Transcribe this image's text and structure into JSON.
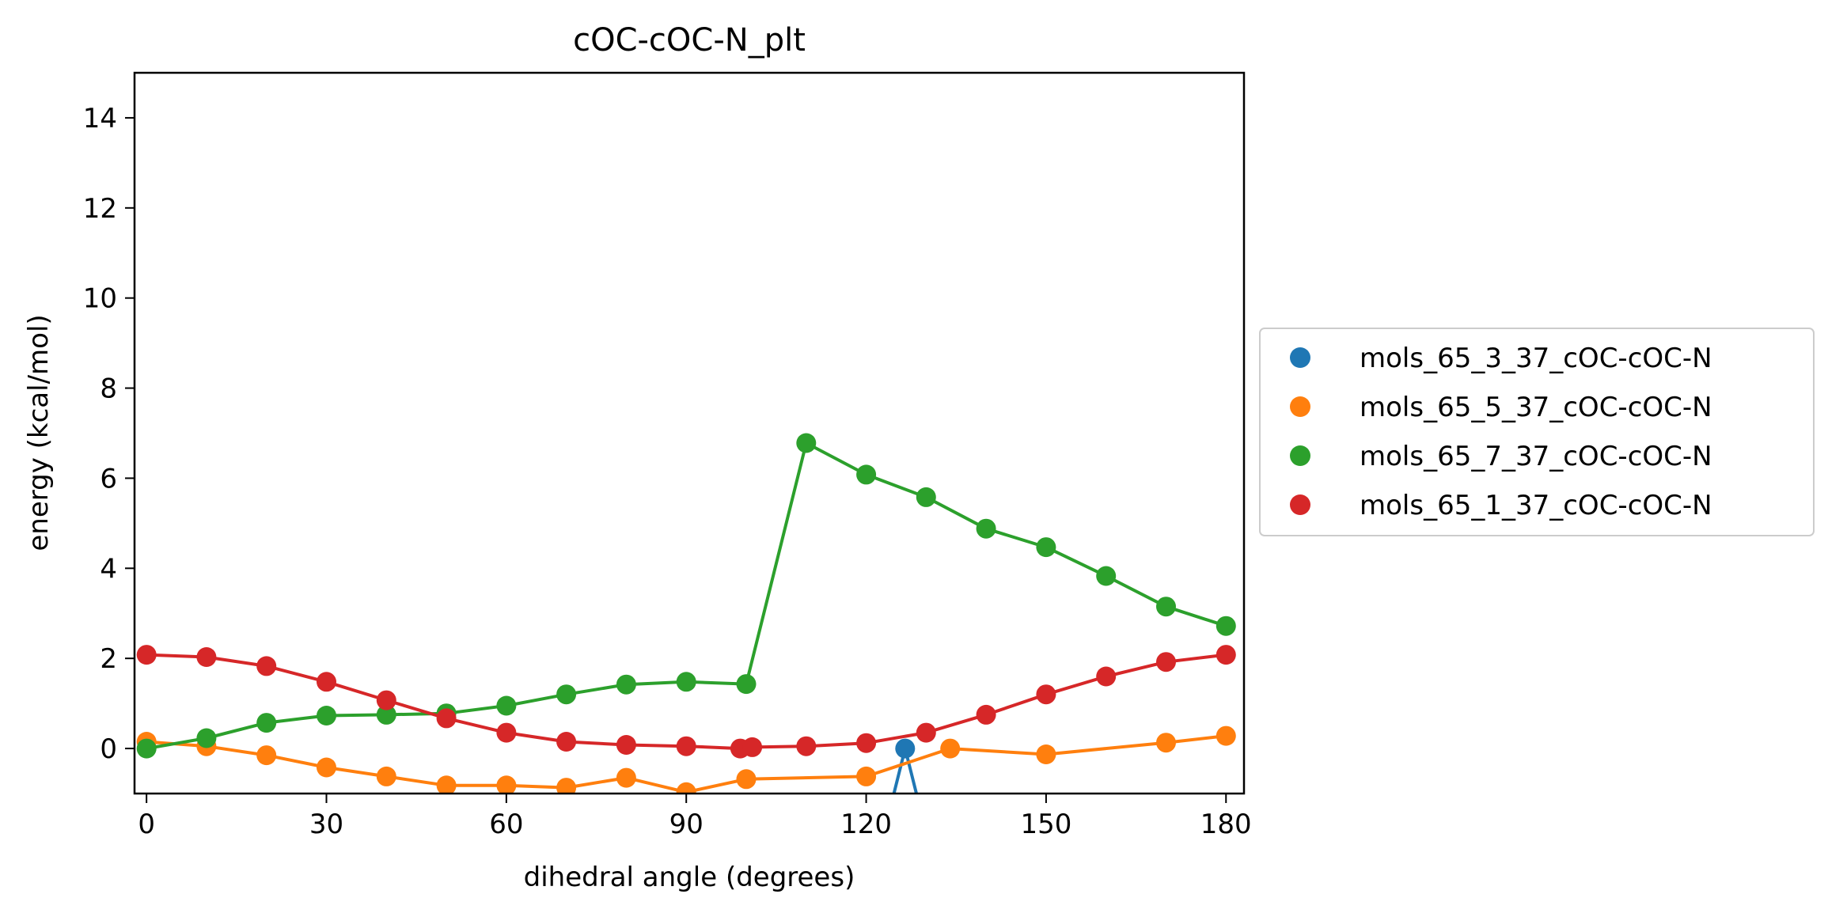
{
  "chart_data": {
    "type": "line",
    "title": "cOC-cOC-N_plt",
    "xlabel": "dihedral angle (degrees)",
    "ylabel": "energy (kcal/mol)",
    "xlim": [
      -2,
      183
    ],
    "ylim": [
      -1,
      15
    ],
    "xticks": [
      0,
      30,
      60,
      90,
      120,
      150,
      180
    ],
    "yticks": [
      0,
      2,
      4,
      6,
      8,
      10,
      12,
      14
    ],
    "grid": false,
    "legend_position": "outside-right",
    "series": [
      {
        "name": "mols_65_3_37_cOC-cOC-N",
        "color": "#1f77b4",
        "points": [
          [
            123.5,
            -1.6
          ],
          [
            126.5,
            0.0
          ],
          [
            129.5,
            -1.6
          ]
        ],
        "markers": [
          [
            126.5,
            0.0
          ]
        ]
      },
      {
        "name": "mols_65_5_37_cOC-cOC-N",
        "color": "#ff7f0e",
        "points": [
          [
            0,
            0.15
          ],
          [
            10,
            0.05
          ],
          [
            20,
            -0.15
          ],
          [
            30,
            -0.42
          ],
          [
            40,
            -0.62
          ],
          [
            50,
            -0.82
          ],
          [
            60,
            -0.82
          ],
          [
            70,
            -0.87
          ],
          [
            80,
            -0.65
          ],
          [
            90,
            -0.97
          ],
          [
            100,
            -0.68
          ],
          [
            120,
            -0.62
          ],
          [
            134,
            0.0
          ],
          [
            150,
            -0.13
          ],
          [
            170,
            0.13
          ],
          [
            180,
            0.28
          ]
        ],
        "markers": [
          [
            0,
            0.15
          ],
          [
            10,
            0.05
          ],
          [
            20,
            -0.15
          ],
          [
            30,
            -0.42
          ],
          [
            40,
            -0.62
          ],
          [
            50,
            -0.82
          ],
          [
            60,
            -0.82
          ],
          [
            70,
            -0.87
          ],
          [
            80,
            -0.65
          ],
          [
            90,
            -0.97
          ],
          [
            100,
            -0.68
          ],
          [
            120,
            -0.62
          ],
          [
            134,
            0.0
          ],
          [
            150,
            -0.13
          ],
          [
            170,
            0.13
          ],
          [
            180,
            0.28
          ]
        ]
      },
      {
        "name": "mols_65_7_37_cOC-cOC-N",
        "color": "#2ca02c",
        "points": [
          [
            0,
            0.0
          ],
          [
            10,
            0.23
          ],
          [
            20,
            0.57
          ],
          [
            30,
            0.73
          ],
          [
            40,
            0.75
          ],
          [
            50,
            0.78
          ],
          [
            60,
            0.95
          ],
          [
            70,
            1.2
          ],
          [
            80,
            1.42
          ],
          [
            90,
            1.48
          ],
          [
            100,
            1.43
          ],
          [
            110,
            6.78
          ],
          [
            120,
            6.08
          ],
          [
            130,
            5.58
          ],
          [
            140,
            4.88
          ],
          [
            150,
            4.47
          ],
          [
            160,
            3.83
          ],
          [
            170,
            3.15
          ],
          [
            180,
            2.72
          ]
        ],
        "markers": [
          [
            0,
            0.0
          ],
          [
            10,
            0.23
          ],
          [
            20,
            0.57
          ],
          [
            30,
            0.73
          ],
          [
            40,
            0.75
          ],
          [
            50,
            0.78
          ],
          [
            60,
            0.95
          ],
          [
            70,
            1.2
          ],
          [
            80,
            1.42
          ],
          [
            90,
            1.48
          ],
          [
            100,
            1.43
          ],
          [
            110,
            6.78
          ],
          [
            120,
            6.08
          ],
          [
            130,
            5.58
          ],
          [
            140,
            4.88
          ],
          [
            150,
            4.47
          ],
          [
            160,
            3.83
          ],
          [
            170,
            3.15
          ],
          [
            180,
            2.72
          ]
        ]
      },
      {
        "name": "mols_65_1_37_cOC-cOC-N",
        "color": "#d62728",
        "points": [
          [
            0,
            2.08
          ],
          [
            10,
            2.03
          ],
          [
            20,
            1.83
          ],
          [
            30,
            1.48
          ],
          [
            40,
            1.07
          ],
          [
            50,
            0.67
          ],
          [
            60,
            0.35
          ],
          [
            70,
            0.15
          ],
          [
            80,
            0.08
          ],
          [
            90,
            0.05
          ],
          [
            99,
            0.0
          ],
          [
            101,
            0.03
          ],
          [
            110,
            0.05
          ],
          [
            120,
            0.12
          ],
          [
            130,
            0.35
          ],
          [
            140,
            0.75
          ],
          [
            150,
            1.2
          ],
          [
            160,
            1.6
          ],
          [
            170,
            1.92
          ],
          [
            180,
            2.08
          ]
        ],
        "markers": [
          [
            0,
            2.08
          ],
          [
            10,
            2.03
          ],
          [
            20,
            1.83
          ],
          [
            30,
            1.48
          ],
          [
            40,
            1.07
          ],
          [
            50,
            0.67
          ],
          [
            60,
            0.35
          ],
          [
            70,
            0.15
          ],
          [
            80,
            0.08
          ],
          [
            90,
            0.05
          ],
          [
            99,
            0.0
          ],
          [
            101,
            0.03
          ],
          [
            110,
            0.05
          ],
          [
            120,
            0.12
          ],
          [
            130,
            0.35
          ],
          [
            140,
            0.75
          ],
          [
            150,
            1.2
          ],
          [
            160,
            1.6
          ],
          [
            170,
            1.92
          ],
          [
            180,
            2.08
          ]
        ]
      }
    ]
  }
}
